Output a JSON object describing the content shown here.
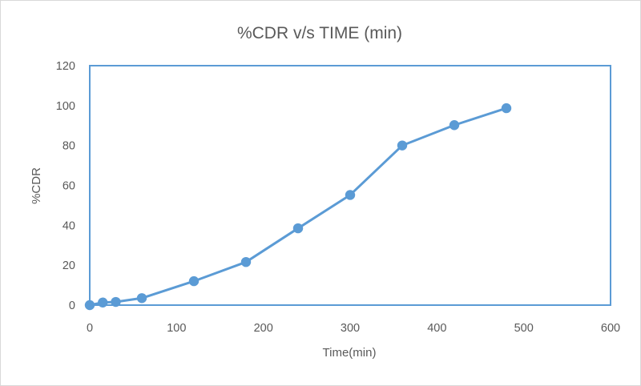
{
  "chart_data": {
    "type": "scatter",
    "title": "%CDR v/s TIME (min)",
    "xlabel": "Time(min)",
    "ylabel": "%CDR",
    "xlim": [
      0,
      600
    ],
    "ylim": [
      0,
      120
    ],
    "xticks": [
      0,
      100,
      200,
      300,
      400,
      500,
      600
    ],
    "yticks": [
      0,
      20,
      40,
      60,
      80,
      100,
      120
    ],
    "x_tick_labels": [
      "0",
      "100",
      "200",
      "300",
      "400",
      "500",
      "600"
    ],
    "y_tick_labels": [
      "0",
      "20",
      "40",
      "60",
      "80",
      "100",
      "120"
    ],
    "grid": false,
    "legend": "none",
    "series": [
      {
        "x": [
          0,
          15,
          30,
          60,
          120,
          180,
          240,
          300,
          360,
          420,
          480
        ],
        "y": [
          0,
          1.3,
          1.6,
          3.5,
          12,
          21.6,
          38.5,
          55.2,
          80,
          90.2,
          98.7
        ],
        "color": "#5b9bd5",
        "markers": true,
        "line": "straight"
      }
    ]
  }
}
